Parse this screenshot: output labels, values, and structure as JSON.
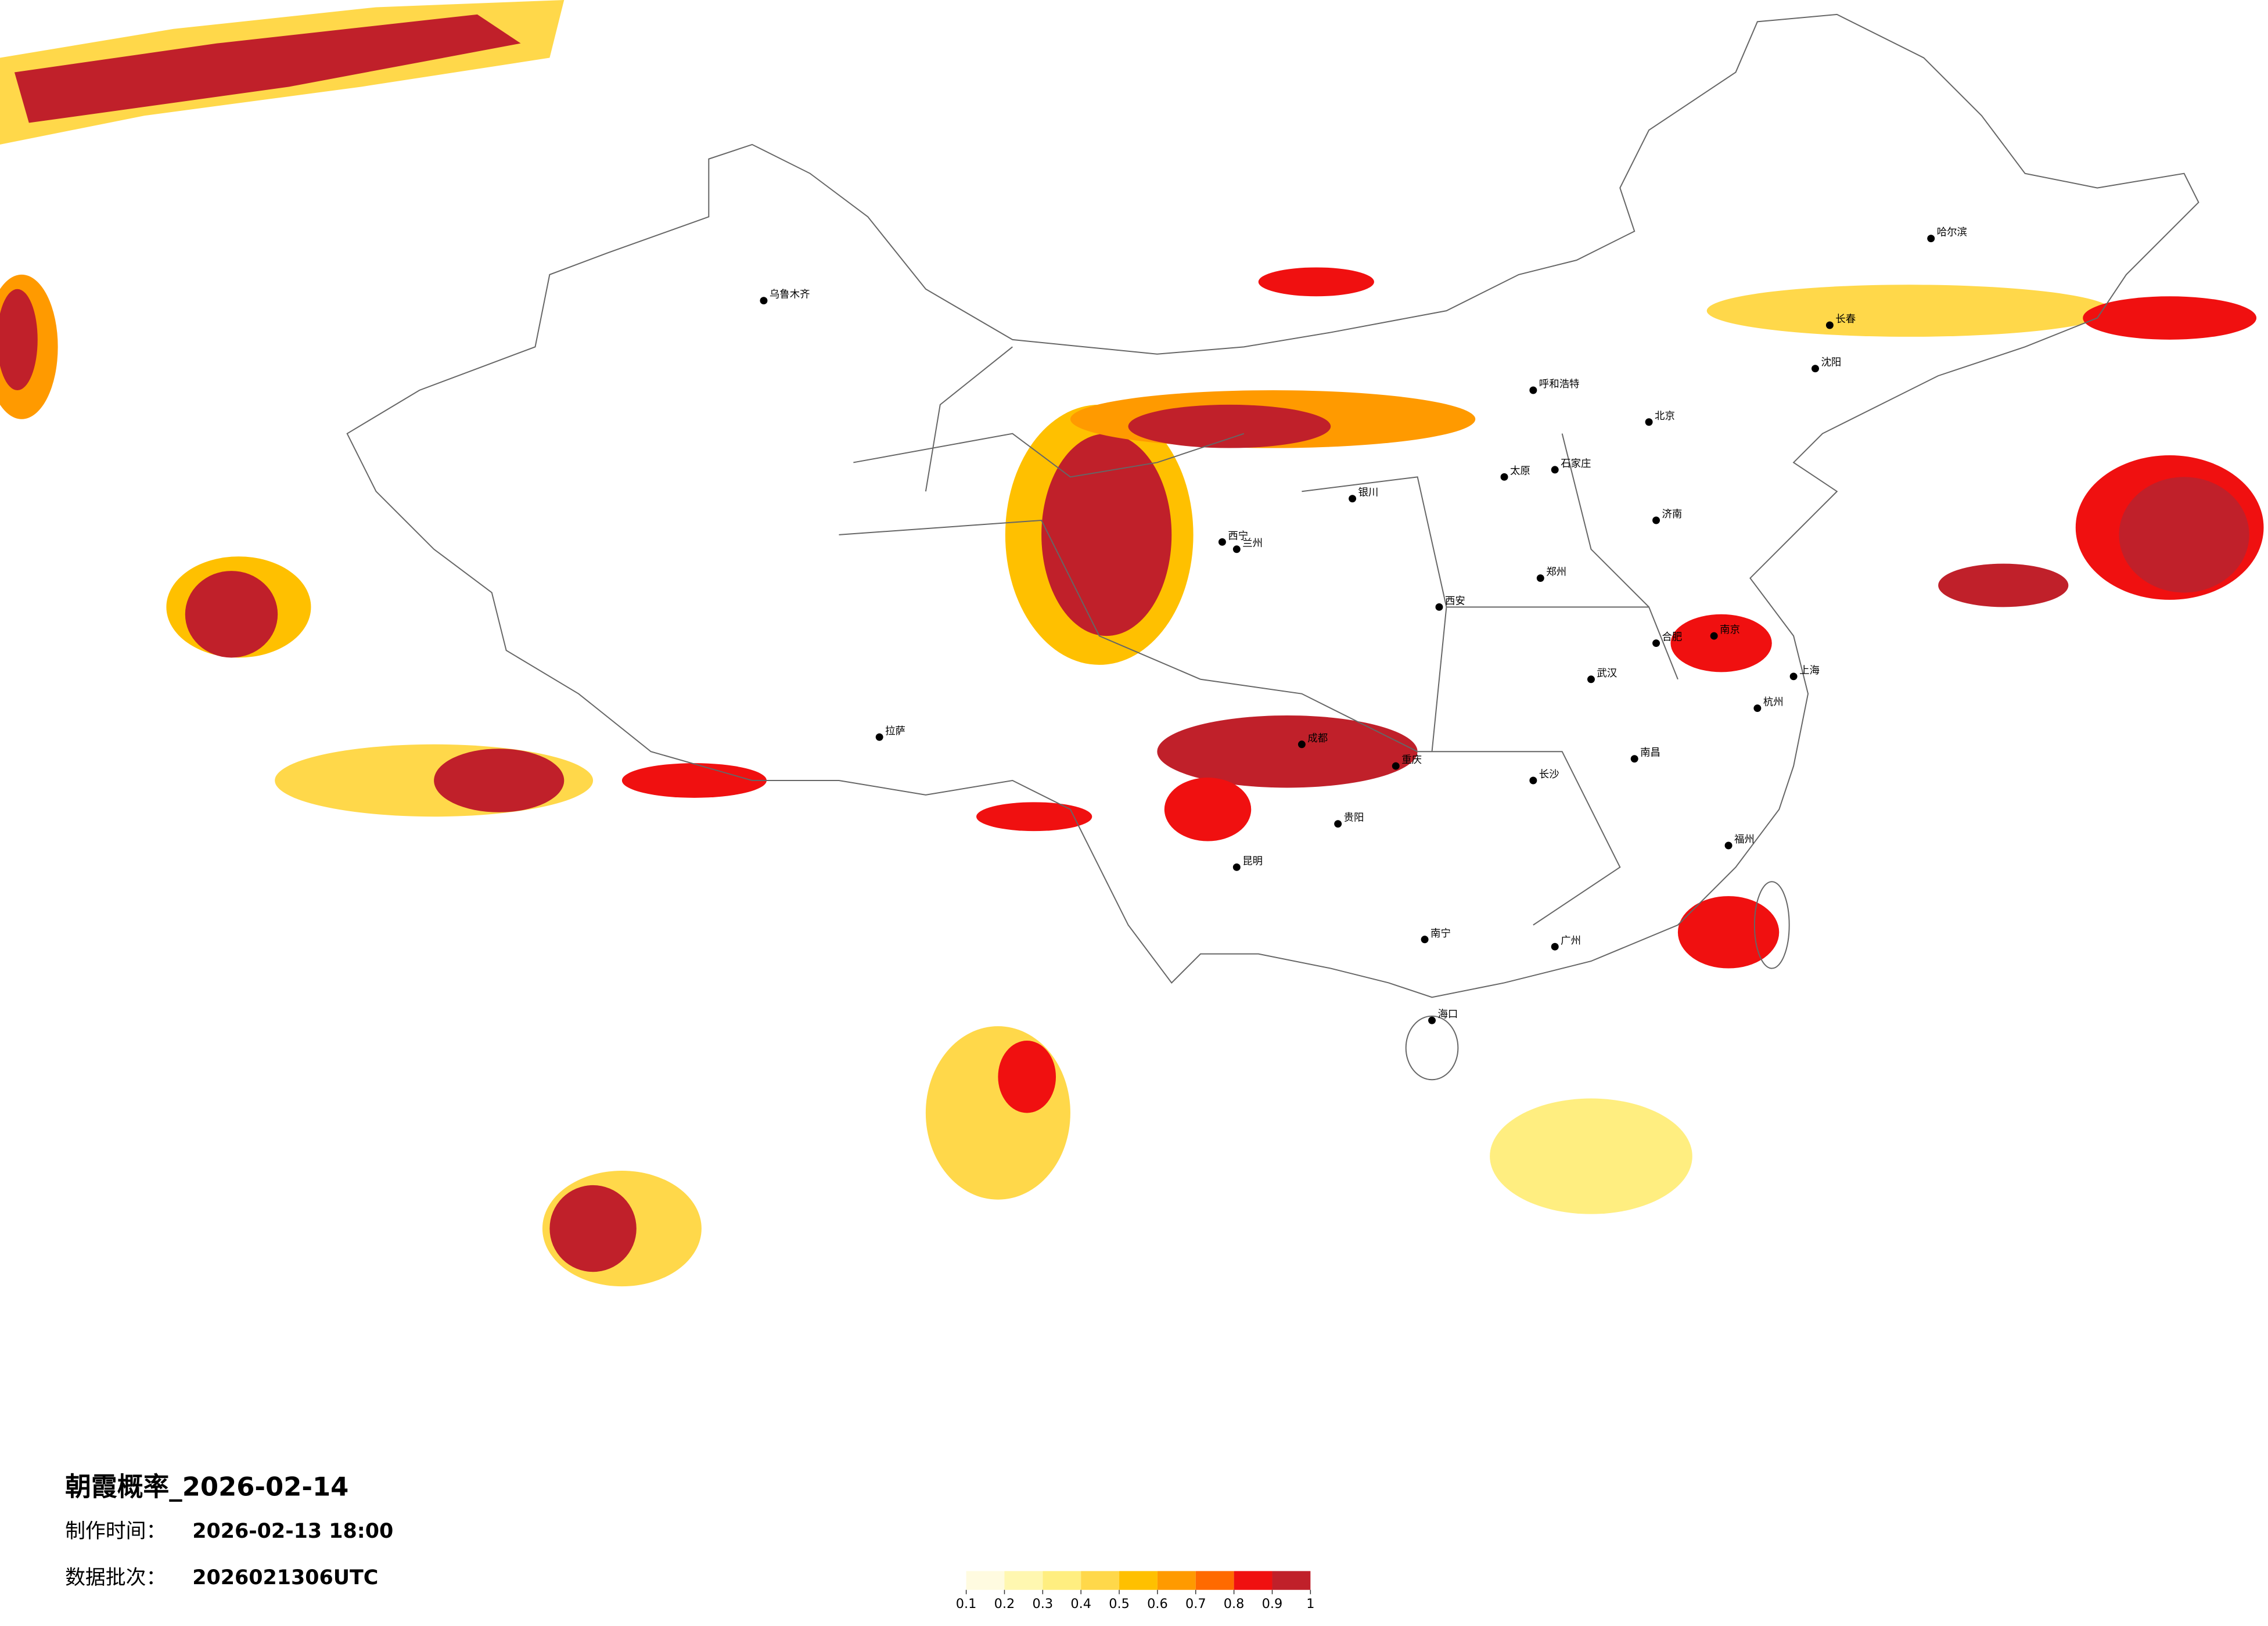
{
  "title": "朝霞概率_2026-02-14",
  "info": [
    {
      "label": "制作时间：",
      "value": "2026-02-13 18:00"
    },
    {
      "label": "数据批次：",
      "value": "2026021306UTC"
    }
  ],
  "legend": {
    "colors": [
      "#fffbe0",
      "#fff7b0",
      "#ffee80",
      "#ffd84a",
      "#ffc000",
      "#ff9a00",
      "#ff6a00",
      "#f01010",
      "#c0202a"
    ],
    "ticks": [
      0.1,
      0.2,
      0.3,
      0.4,
      0.5,
      0.6,
      0.7,
      0.8,
      0.9,
      1
    ]
  },
  "cities": [
    "北京",
    "上海",
    "广州",
    "成都",
    "武汉",
    "西安",
    "哈尔滨",
    "乌鲁木齐",
    "拉萨",
    "昆明",
    "兰州",
    "呼和浩特",
    "沈阳",
    "长沙",
    "南京",
    "郑州",
    "重庆",
    "贵阳",
    "南宁",
    "海口",
    "福州",
    "济南",
    "太原",
    "银川",
    "西宁",
    "长春",
    "石家庄",
    "杭州",
    "南昌",
    "合肥"
  ]
}
